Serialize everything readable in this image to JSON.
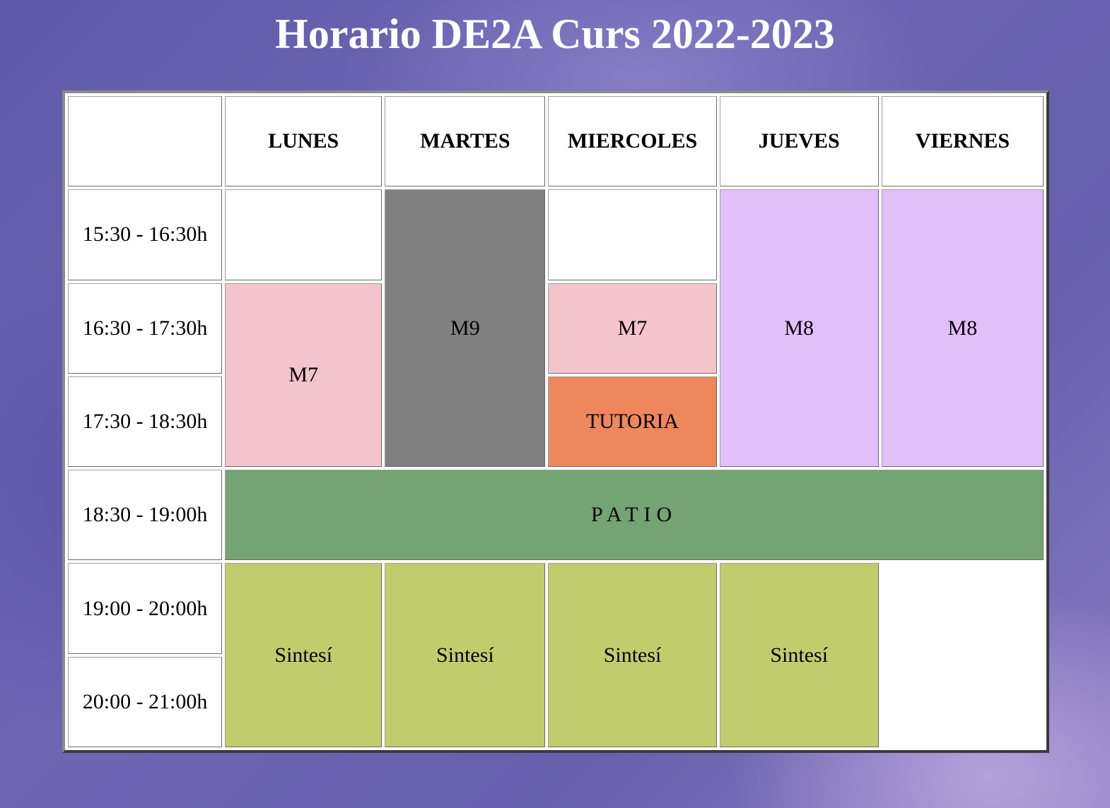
{
  "title": "Horario DE2A Curs 2022-2023",
  "days": [
    "LUNES",
    "MARTES",
    "MIERCOLES",
    "JUEVES",
    "VIERNES"
  ],
  "times": [
    "15:30 - 16:30h",
    "16:30 - 17:30h",
    "17:30 - 18:30h",
    "18:30 - 19:00h",
    "19:00 - 20:00h",
    "20:00 - 21:00h"
  ],
  "cells": {
    "lunes_m7": "M7",
    "martes_m9": "M9",
    "miercoles_m7": "M7",
    "miercoles_tutoria": "TUTORIA",
    "jueves_m8": "M8",
    "viernes_m8": "M8",
    "patio": "PATIO",
    "lunes_sintesi": "Sintesí",
    "martes_sintesi": "Sintesí",
    "miercoles_sintesi": "Sintesí",
    "jueves_sintesi": "Sintesí"
  },
  "colors": {
    "m7": "#f4c4cc",
    "m9": "#808080",
    "m8": "#e2bff9",
    "tutoria": "#ef875c",
    "patio": "#74a374",
    "sintesi": "#c1cd6d"
  }
}
